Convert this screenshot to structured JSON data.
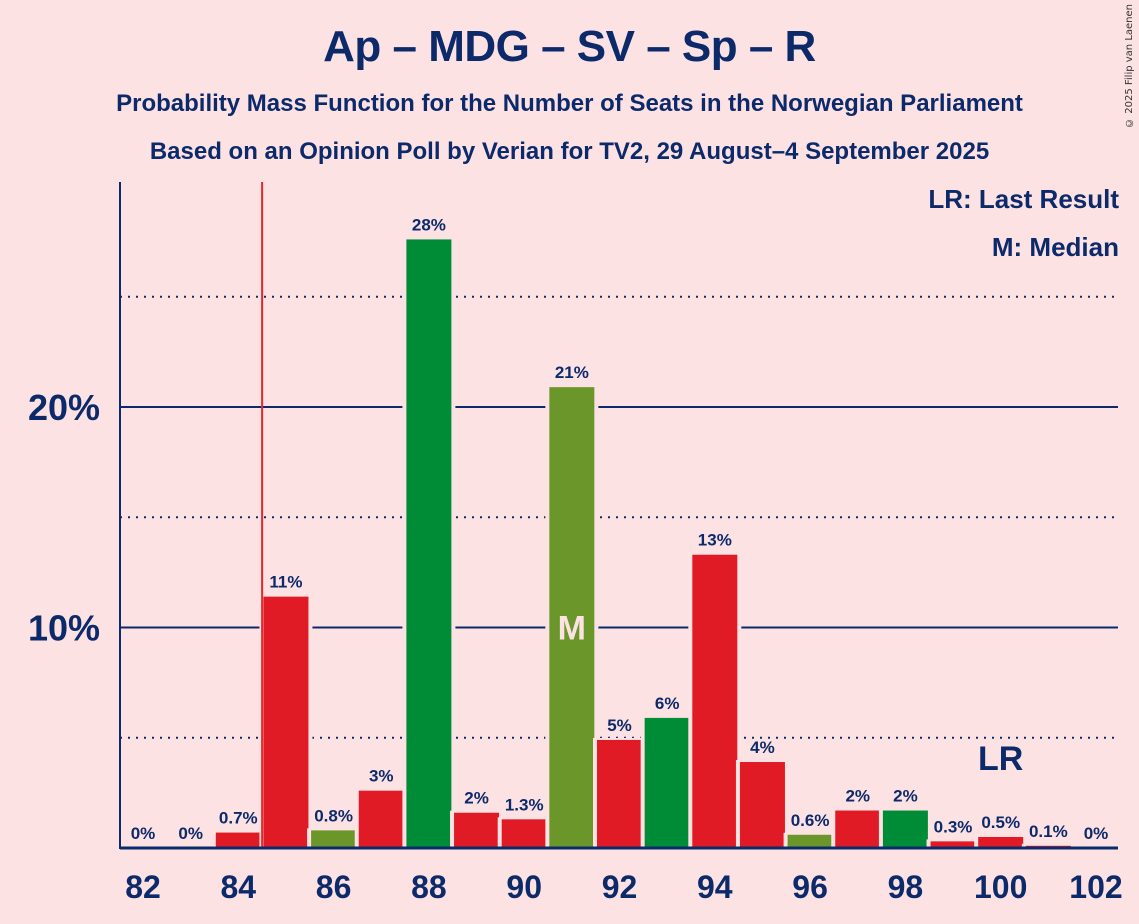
{
  "title": "Ap – MDG – SV – Sp – R",
  "subtitle1": "Probability Mass Function for the Number of Seats in the Norwegian Parliament",
  "subtitle2": "Based on an Opinion Poll by Verian for TV2, 29 August–4 September 2025",
  "copyright": "© 2025 Filip van Laenen",
  "legend": {
    "last_result": "LR: Last Result",
    "median": "M: Median"
  },
  "colors": {
    "background": "#fde2e4",
    "text": "#0c2a6a",
    "red": "#e01b25",
    "green": "#008c37",
    "olive": "#6b962a",
    "last_result_line": "#e8252b"
  },
  "chart_data": {
    "type": "bar",
    "title": "Ap – MDG – SV – Sp – R",
    "xlabel": "",
    "ylabel": "",
    "x": [
      82,
      83,
      84,
      85,
      86,
      87,
      88,
      89,
      90,
      91,
      92,
      93,
      94,
      95,
      96,
      97,
      98,
      99,
      100,
      101,
      102
    ],
    "values": [
      0,
      0,
      0.7,
      11.4,
      0.8,
      2.6,
      27.6,
      1.6,
      1.3,
      20.9,
      4.9,
      5.9,
      13.3,
      3.9,
      0.6,
      1.7,
      1.7,
      0.3,
      0.5,
      0.1,
      0
    ],
    "labels": [
      "0%",
      "0%",
      "0.7%",
      "11%",
      "0.8%",
      "3%",
      "28%",
      "2%",
      "1.3%",
      "21%",
      "5%",
      "6%",
      "13%",
      "4%",
      "0.6%",
      "2%",
      "2%",
      "0.3%",
      "0.5%",
      "0.1%",
      "0%"
    ],
    "bar_colors": [
      "red",
      "red",
      "red",
      "red",
      "olive",
      "red",
      "green",
      "red",
      "red",
      "olive",
      "red",
      "green",
      "red",
      "red",
      "olive",
      "red",
      "green",
      "red",
      "red",
      "red",
      "red"
    ],
    "xticks": [
      82,
      84,
      86,
      88,
      90,
      92,
      94,
      96,
      98,
      100,
      102
    ],
    "yticks_major": [
      10,
      20
    ],
    "ytick_labels": [
      "10%",
      "20%"
    ],
    "yticks_minor": [
      5,
      15,
      25
    ],
    "ylim": [
      0,
      30
    ],
    "median_seat": 91,
    "median_marker": "M",
    "last_result_seat": 100,
    "last_result_marker": "LR",
    "last_result_line_at": 84.5,
    "legend_position": "top-right",
    "grid": true
  }
}
